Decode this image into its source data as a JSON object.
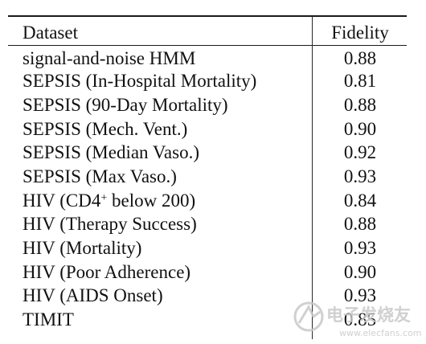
{
  "table": {
    "headers": {
      "dataset": "Dataset",
      "fidelity": "Fidelity"
    },
    "rows": [
      {
        "dataset": "signal-and-noise HMM",
        "fidelity": "0.88"
      },
      {
        "dataset": "SEPSIS (In-Hospital Mortality)",
        "fidelity": "0.81"
      },
      {
        "dataset": "SEPSIS (90-Day Mortality)",
        "fidelity": "0.88"
      },
      {
        "dataset": "SEPSIS (Mech. Vent.)",
        "fidelity": "0.90"
      },
      {
        "dataset": "SEPSIS (Median Vaso.)",
        "fidelity": "0.92"
      },
      {
        "dataset": "SEPSIS (Max Vaso.)",
        "fidelity": "0.93"
      },
      {
        "dataset_prefix": "HIV (CD4",
        "dataset_sup": "+",
        "dataset_suffix": " below 200)",
        "fidelity": "0.84"
      },
      {
        "dataset": "HIV (Therapy Success)",
        "fidelity": "0.88"
      },
      {
        "dataset": "HIV (Mortality)",
        "fidelity": "0.93"
      },
      {
        "dataset": "HIV (Poor Adherence)",
        "fidelity": "0.90"
      },
      {
        "dataset": "HIV (AIDS Onset)",
        "fidelity": "0.93"
      },
      {
        "dataset": "TIMIT",
        "fidelity": "0.85"
      }
    ]
  },
  "watermark": {
    "text": "电子发烧友",
    "url": "www.elecfans.com",
    "color": "#c8c8c8"
  }
}
